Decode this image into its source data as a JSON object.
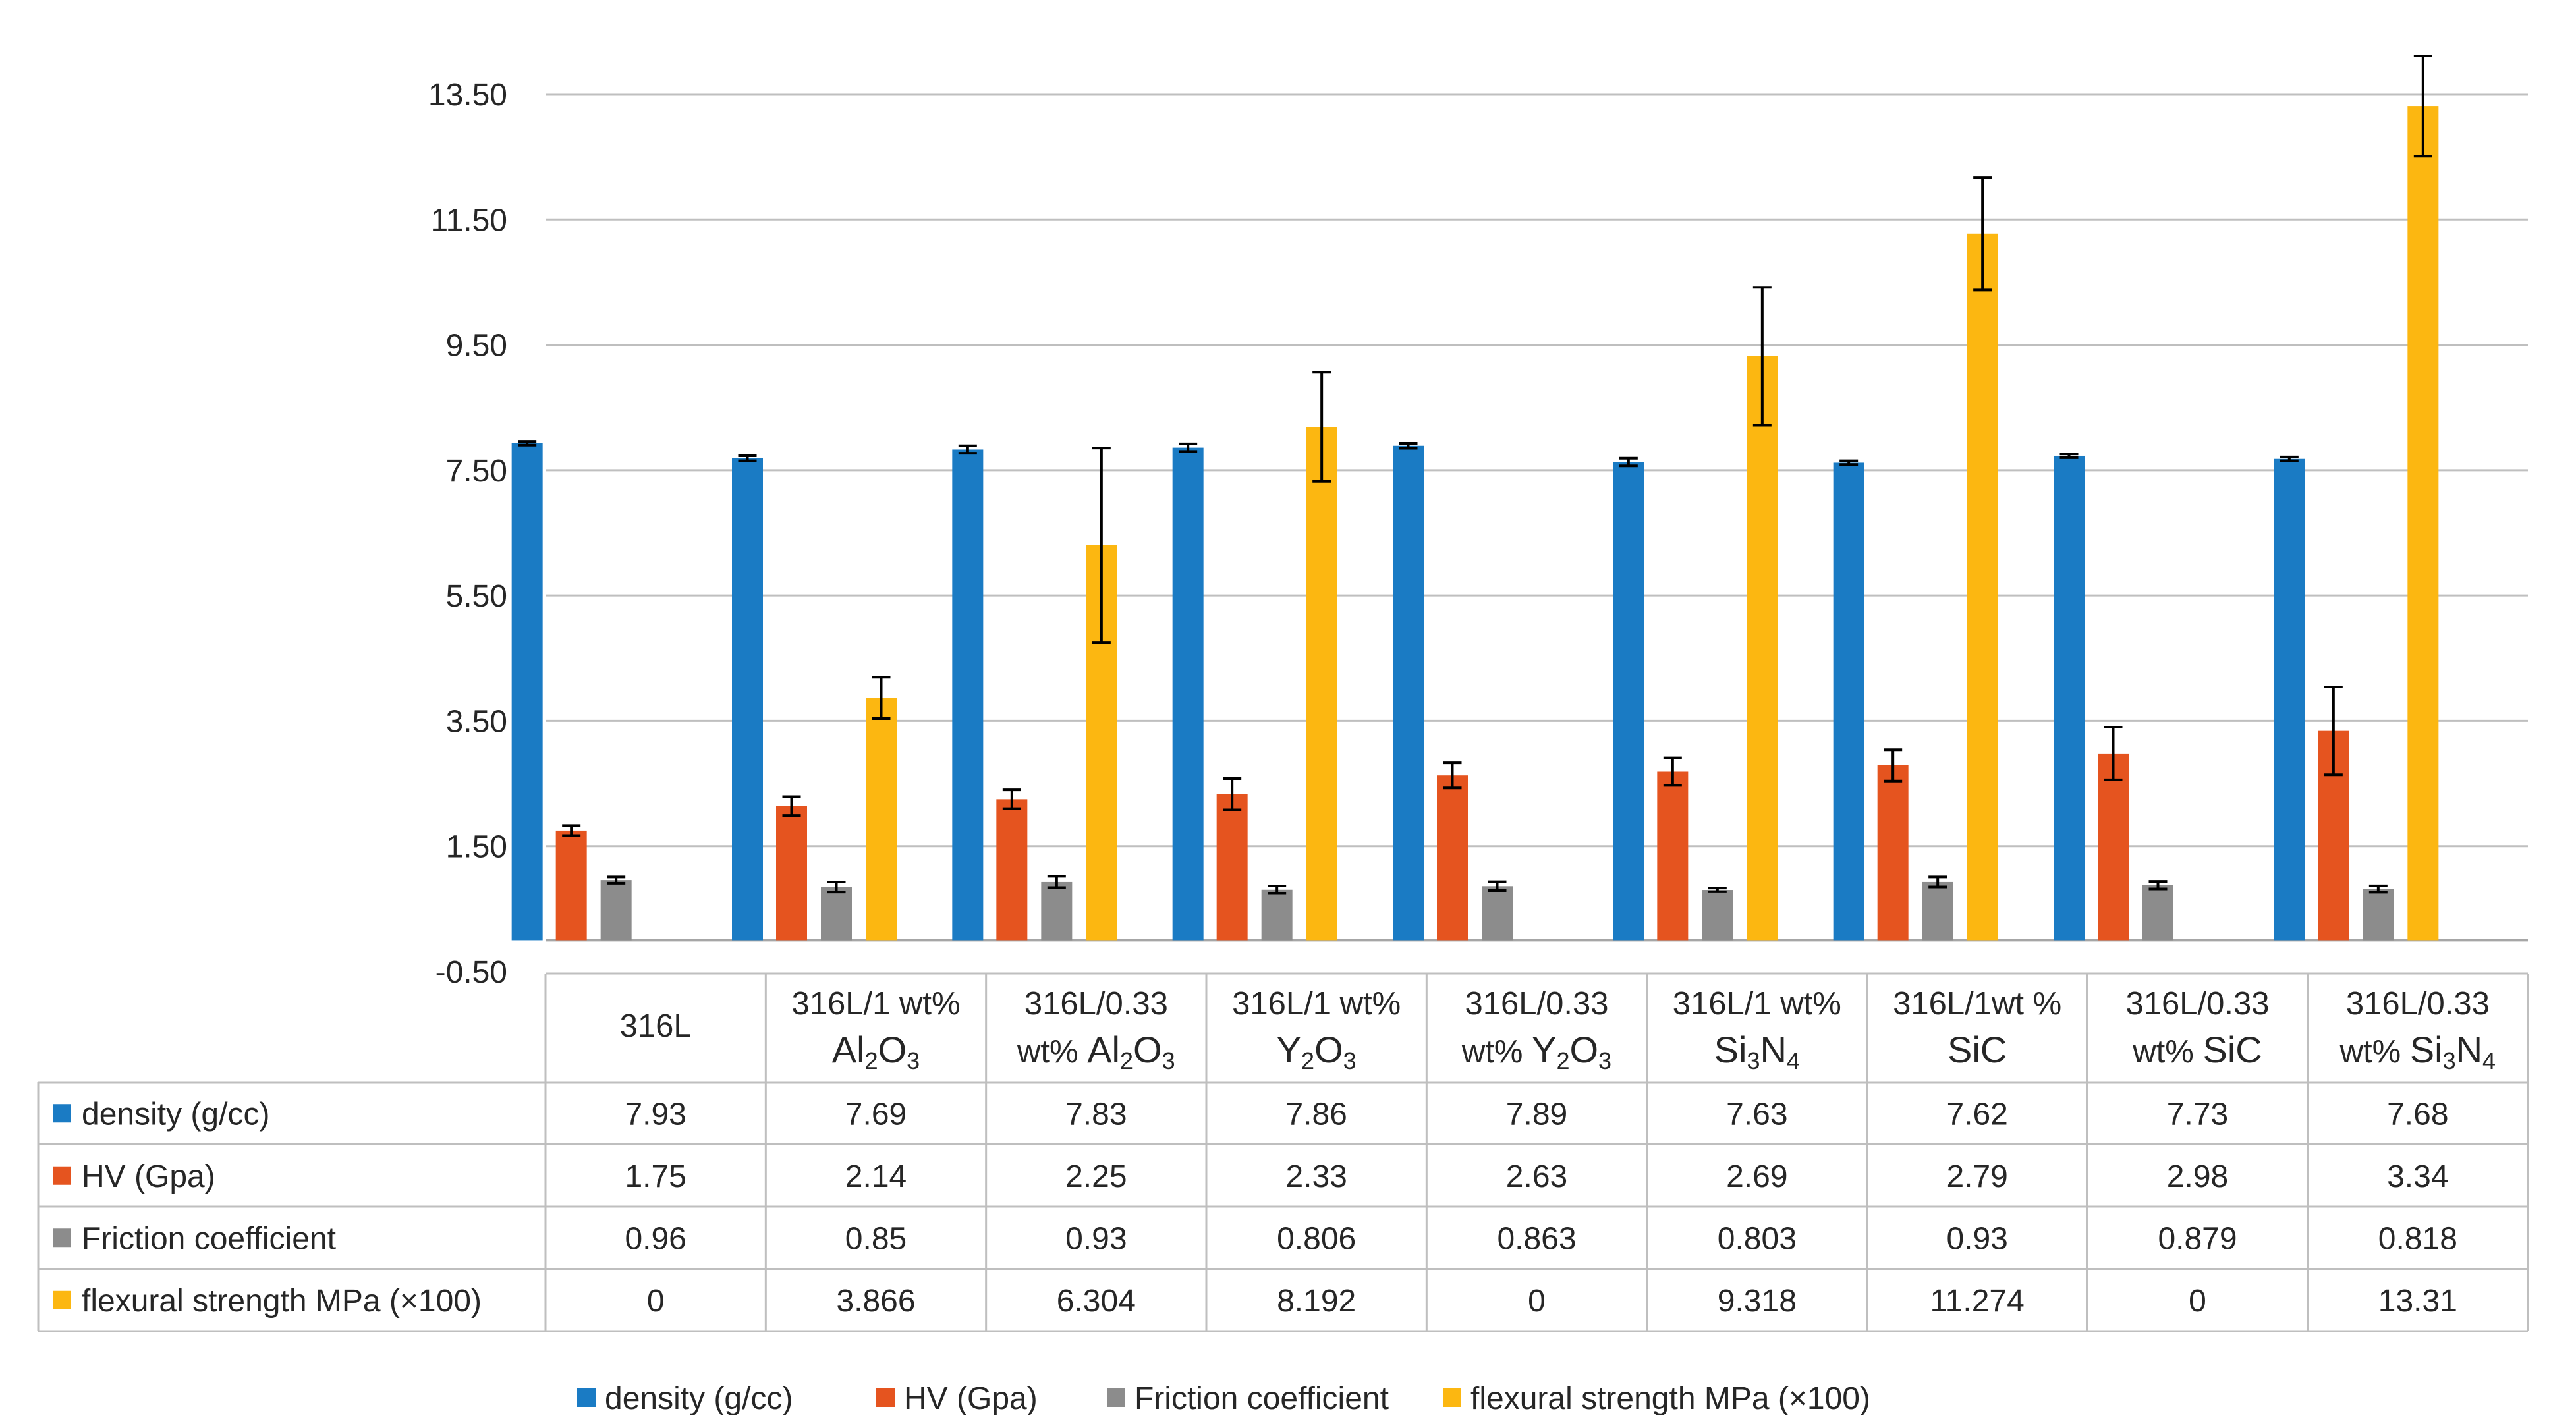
{
  "chart_data": {
    "type": "bar",
    "title": "",
    "xlabel": "",
    "ylabel": "",
    "ylim": [
      -0.5,
      13.5
    ],
    "yticks": [
      "13.50",
      "11.50",
      "9.50",
      "7.50",
      "5.50",
      "3.50",
      "1.50",
      "-0.50"
    ],
    "grid": true,
    "legend_position": "bottom",
    "categories": [
      {
        "line1": "316L",
        "line2": "",
        "chem": []
      },
      {
        "line1": "316L/1 wt%",
        "line2": "",
        "chem": [
          [
            "Al",
            ""
          ],
          [
            "2",
            "sub"
          ],
          [
            "O",
            ""
          ],
          [
            "3",
            "sub"
          ]
        ]
      },
      {
        "line1": "316L/0.33",
        "line2": "wt% ",
        "chem": [
          [
            "Al",
            ""
          ],
          [
            "2",
            "sub"
          ],
          [
            "O",
            ""
          ],
          [
            "3",
            "sub"
          ]
        ]
      },
      {
        "line1": "316L/1 wt%",
        "line2": "",
        "chem": [
          [
            "Y",
            ""
          ],
          [
            "2",
            "sub"
          ],
          [
            "O",
            ""
          ],
          [
            "3",
            "sub"
          ]
        ]
      },
      {
        "line1": "316L/0.33",
        "line2": "wt% ",
        "chem": [
          [
            "Y",
            ""
          ],
          [
            "2",
            "sub"
          ],
          [
            "O",
            ""
          ],
          [
            "3",
            "sub"
          ]
        ]
      },
      {
        "line1": "316L/1 wt%",
        "line2": "",
        "chem": [
          [
            "Si",
            ""
          ],
          [
            "3",
            "sub"
          ],
          [
            "N",
            ""
          ],
          [
            "4",
            "sub"
          ]
        ]
      },
      {
        "line1": "316L/1wt %",
        "line2": "",
        "chem": [
          [
            "SiC",
            ""
          ]
        ]
      },
      {
        "line1": "316L/0.33",
        "line2": "wt% ",
        "chem": [
          [
            "SiC",
            ""
          ]
        ]
      },
      {
        "line1": "316L/0.33",
        "line2": "wt% ",
        "chem": [
          [
            "Si",
            ""
          ],
          [
            "3",
            "sub"
          ],
          [
            "N",
            ""
          ],
          [
            "4",
            "sub"
          ]
        ]
      }
    ],
    "series": [
      {
        "name": "density (g/cc)",
        "color": "#1a7bc4",
        "values": [
          7.93,
          7.69,
          7.83,
          7.86,
          7.89,
          7.63,
          7.62,
          7.73,
          7.68
        ],
        "labels": [
          "7.93",
          "7.69",
          "7.83",
          "7.86",
          "7.89",
          "7.63",
          "7.62",
          "7.73",
          "7.68"
        ],
        "errors": [
          0.03,
          0.04,
          0.06,
          0.06,
          0.04,
          0.06,
          0.03,
          0.03,
          0.03
        ]
      },
      {
        "name": "HV (Gpa)",
        "color": "#e5541f",
        "values": [
          1.75,
          2.14,
          2.25,
          2.33,
          2.63,
          2.69,
          2.79,
          2.98,
          3.34
        ],
        "labels": [
          "1.75",
          "2.14",
          "2.25",
          "2.33",
          "2.63",
          "2.69",
          "2.79",
          "2.98",
          "3.34"
        ],
        "errors": [
          0.08,
          0.15,
          0.15,
          0.25,
          0.2,
          0.22,
          0.25,
          0.42,
          0.7
        ]
      },
      {
        "name": "Friction coefficient",
        "color": "#8c8c8c",
        "values": [
          0.96,
          0.85,
          0.93,
          0.806,
          0.863,
          0.803,
          0.93,
          0.879,
          0.818
        ],
        "labels": [
          "0.96",
          "0.85",
          "0.93",
          "0.806",
          "0.863",
          "0.803",
          "0.93",
          "0.879",
          "0.818"
        ],
        "errors": [
          0.05,
          0.08,
          0.09,
          0.06,
          0.07,
          0.03,
          0.08,
          0.06,
          0.05
        ]
      },
      {
        "name": "flexural strength MPa (×100)",
        "color": "#fcb711",
        "values": [
          0,
          3.866,
          6.304,
          8.192,
          0,
          9.318,
          11.274,
          0,
          13.31
        ],
        "labels": [
          "0",
          "3.866",
          "6.304",
          "8.192",
          "0",
          "9.318",
          "11.274",
          "0",
          "13.31"
        ],
        "errors": [
          0,
          0.33,
          1.55,
          0.87,
          0,
          1.1,
          0.9,
          0,
          0.8
        ]
      }
    ]
  }
}
